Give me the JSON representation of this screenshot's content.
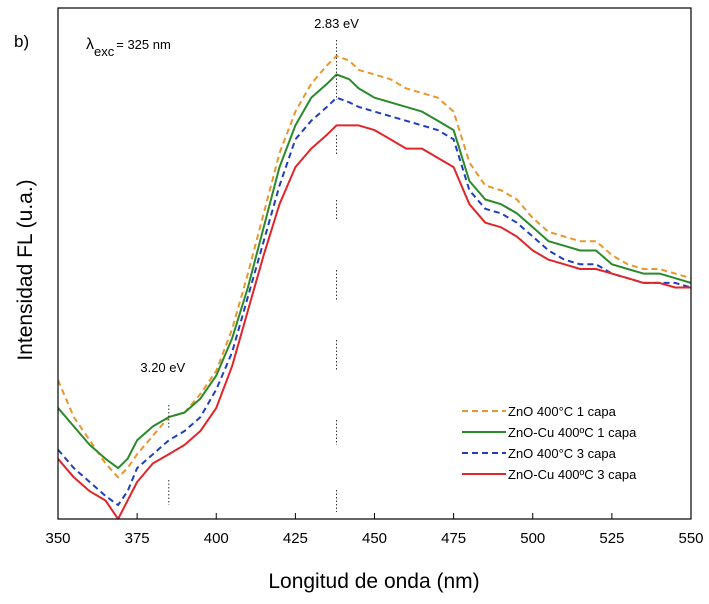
{
  "chart_data": {
    "type": "line",
    "panel_label": "b)",
    "xlabel": "Longitud de onda (nm)",
    "ylabel": "Intensidad FL (u.a.)",
    "xlim": [
      350,
      550
    ],
    "ylim": [
      0,
      1
    ],
    "y_ticks_shown": false,
    "xticks": [
      350,
      375,
      400,
      425,
      450,
      475,
      500,
      525,
      550
    ],
    "grid": false,
    "legend_position": "lower-right",
    "excitation": {
      "symbol": "λ",
      "subscript": "exc",
      "value": "= 325 nm"
    },
    "annotations": [
      {
        "text": "2.83 eV",
        "x": 438
      },
      {
        "text": "3.20 eV",
        "x": 385
      }
    ],
    "series": [
      {
        "name": "ZnO 400°C 1 capa",
        "color": "#e8962e",
        "dash": "dash",
        "x": [
          350,
          355,
          360,
          365,
          369,
          372,
          375,
          380,
          385,
          390,
          395,
          400,
          405,
          410,
          415,
          420,
          425,
          430,
          435,
          438,
          442,
          445,
          450,
          455,
          460,
          465,
          470,
          475,
          480,
          485,
          490,
          495,
          500,
          505,
          510,
          515,
          520,
          525,
          530,
          535,
          540,
          545,
          550
        ],
        "y": [
          0.3,
          0.22,
          0.17,
          0.12,
          0.09,
          0.11,
          0.14,
          0.18,
          0.22,
          0.23,
          0.27,
          0.32,
          0.41,
          0.53,
          0.66,
          0.79,
          0.88,
          0.94,
          0.98,
          1.0,
          0.99,
          0.97,
          0.96,
          0.95,
          0.93,
          0.92,
          0.91,
          0.88,
          0.77,
          0.72,
          0.71,
          0.69,
          0.65,
          0.62,
          0.61,
          0.6,
          0.6,
          0.57,
          0.55,
          0.54,
          0.54,
          0.53,
          0.52
        ]
      },
      {
        "name": "ZnO-Cu 400ºC 1 capa",
        "color": "#2a8a2a",
        "dash": "solid",
        "x": [
          350,
          355,
          360,
          365,
          369,
          372,
          375,
          380,
          385,
          390,
          395,
          400,
          405,
          410,
          415,
          420,
          425,
          430,
          435,
          438,
          442,
          445,
          450,
          455,
          460,
          465,
          470,
          475,
          480,
          485,
          490,
          495,
          500,
          505,
          510,
          515,
          520,
          525,
          530,
          535,
          540,
          545,
          550
        ],
        "y": [
          0.24,
          0.2,
          0.16,
          0.13,
          0.11,
          0.13,
          0.17,
          0.2,
          0.22,
          0.23,
          0.26,
          0.31,
          0.39,
          0.5,
          0.63,
          0.76,
          0.85,
          0.91,
          0.94,
          0.96,
          0.95,
          0.93,
          0.91,
          0.9,
          0.89,
          0.88,
          0.86,
          0.84,
          0.73,
          0.69,
          0.68,
          0.66,
          0.63,
          0.6,
          0.59,
          0.58,
          0.58,
          0.55,
          0.54,
          0.53,
          0.53,
          0.52,
          0.51
        ]
      },
      {
        "name": "ZnO 400°C 3 capa",
        "color": "#1f3fbf",
        "dash": "dash",
        "x": [
          350,
          355,
          360,
          365,
          369,
          372,
          375,
          380,
          385,
          390,
          395,
          400,
          405,
          410,
          415,
          420,
          425,
          430,
          435,
          438,
          442,
          445,
          450,
          455,
          460,
          465,
          470,
          475,
          480,
          485,
          490,
          495,
          500,
          505,
          510,
          515,
          520,
          525,
          530,
          535,
          540,
          545,
          550
        ],
        "y": [
          0.15,
          0.11,
          0.08,
          0.05,
          0.03,
          0.06,
          0.11,
          0.14,
          0.17,
          0.19,
          0.22,
          0.28,
          0.36,
          0.48,
          0.6,
          0.72,
          0.82,
          0.86,
          0.89,
          0.91,
          0.9,
          0.89,
          0.88,
          0.87,
          0.86,
          0.85,
          0.84,
          0.82,
          0.71,
          0.67,
          0.66,
          0.64,
          0.61,
          0.58,
          0.56,
          0.55,
          0.55,
          0.53,
          0.52,
          0.51,
          0.51,
          0.51,
          0.5
        ]
      },
      {
        "name": "ZnO-Cu 400ºC 3 capa",
        "color": "#e0262a",
        "dash": "solid",
        "x": [
          350,
          355,
          360,
          365,
          369,
          372,
          375,
          380,
          385,
          390,
          395,
          400,
          405,
          410,
          415,
          420,
          425,
          430,
          435,
          438,
          442,
          445,
          450,
          455,
          460,
          465,
          470,
          475,
          480,
          485,
          490,
          495,
          500,
          505,
          510,
          515,
          520,
          525,
          530,
          535,
          540,
          545,
          550
        ],
        "y": [
          0.13,
          0.09,
          0.06,
          0.04,
          0.0,
          0.04,
          0.08,
          0.12,
          0.14,
          0.16,
          0.19,
          0.24,
          0.33,
          0.45,
          0.57,
          0.68,
          0.76,
          0.8,
          0.83,
          0.85,
          0.85,
          0.85,
          0.84,
          0.82,
          0.8,
          0.8,
          0.78,
          0.76,
          0.68,
          0.64,
          0.63,
          0.61,
          0.58,
          0.56,
          0.55,
          0.54,
          0.54,
          0.53,
          0.52,
          0.51,
          0.51,
          0.5,
          0.5
        ]
      }
    ]
  }
}
